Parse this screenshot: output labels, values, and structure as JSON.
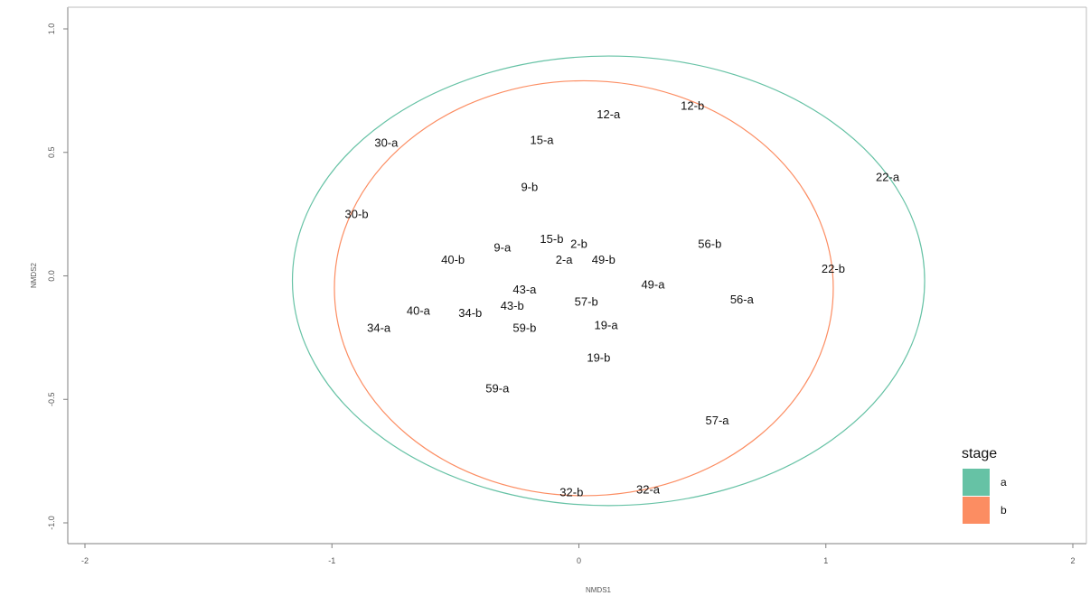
{
  "chart_data": {
    "type": "scatter",
    "title": "",
    "xlabel": "NMDS1",
    "ylabel": "NMDS2",
    "xlim": [
      -2.0,
      2.0
    ],
    "ylim": [
      -1.0,
      1.0
    ],
    "x_ticks": [
      -2,
      -1,
      0,
      1,
      2
    ],
    "y_ticks": [
      -1.0,
      -0.5,
      0.0,
      0.5,
      1.0
    ],
    "x_tick_labels": [
      "-2",
      "-1",
      "0",
      "1",
      "2"
    ],
    "y_tick_labels": [
      "-1.0",
      "-0.5",
      "0.0",
      "0.5",
      "1.0"
    ],
    "grid": false,
    "legend": {
      "title": "stage",
      "position": "bottom-right",
      "entries": [
        {
          "label": "a",
          "color": "#66c2a5"
        },
        {
          "label": "b",
          "color": "#fc8d62"
        }
      ]
    },
    "points": [
      {
        "label": "12-a",
        "x": 0.12,
        "y": 0.655,
        "stage": "a"
      },
      {
        "label": "12-b",
        "x": 0.46,
        "y": 0.69,
        "stage": "b"
      },
      {
        "label": "15-a",
        "x": -0.15,
        "y": 0.55,
        "stage": "a"
      },
      {
        "label": "30-a",
        "x": -0.78,
        "y": 0.54,
        "stage": "a"
      },
      {
        "label": "22-a",
        "x": 1.25,
        "y": 0.4,
        "stage": "a"
      },
      {
        "label": "9-b",
        "x": -0.2,
        "y": 0.36,
        "stage": "b"
      },
      {
        "label": "30-b",
        "x": -0.9,
        "y": 0.25,
        "stage": "b"
      },
      {
        "label": "15-b",
        "x": -0.11,
        "y": 0.15,
        "stage": "b"
      },
      {
        "label": "2-b",
        "x": 0.0,
        "y": 0.13,
        "stage": "b"
      },
      {
        "label": "9-a",
        "x": -0.31,
        "y": 0.115,
        "stage": "a"
      },
      {
        "label": "56-b",
        "x": 0.53,
        "y": 0.13,
        "stage": "b"
      },
      {
        "label": "40-b",
        "x": -0.51,
        "y": 0.065,
        "stage": "b"
      },
      {
        "label": "2-a",
        "x": -0.06,
        "y": 0.065,
        "stage": "a"
      },
      {
        "label": "49-b",
        "x": 0.1,
        "y": 0.065,
        "stage": "b"
      },
      {
        "label": "22-b",
        "x": 1.03,
        "y": 0.03,
        "stage": "b"
      },
      {
        "label": "49-a",
        "x": 0.3,
        "y": -0.035,
        "stage": "a"
      },
      {
        "label": "43-a",
        "x": -0.22,
        "y": -0.055,
        "stage": "a"
      },
      {
        "label": "56-a",
        "x": 0.66,
        "y": -0.095,
        "stage": "a"
      },
      {
        "label": "57-b",
        "x": 0.03,
        "y": -0.105,
        "stage": "b"
      },
      {
        "label": "43-b",
        "x": -0.27,
        "y": -0.12,
        "stage": "b"
      },
      {
        "label": "40-a",
        "x": -0.65,
        "y": -0.14,
        "stage": "a"
      },
      {
        "label": "34-b",
        "x": -0.44,
        "y": -0.15,
        "stage": "b"
      },
      {
        "label": "19-a",
        "x": 0.11,
        "y": -0.2,
        "stage": "a"
      },
      {
        "label": "59-b",
        "x": -0.22,
        "y": -0.21,
        "stage": "b"
      },
      {
        "label": "34-a",
        "x": -0.81,
        "y": -0.21,
        "stage": "a"
      },
      {
        "label": "19-b",
        "x": 0.08,
        "y": -0.33,
        "stage": "b"
      },
      {
        "label": "59-a",
        "x": -0.33,
        "y": -0.455,
        "stage": "a"
      },
      {
        "label": "57-a",
        "x": 0.56,
        "y": -0.585,
        "stage": "a"
      },
      {
        "label": "32-b",
        "x": -0.03,
        "y": -0.875,
        "stage": "b"
      },
      {
        "label": "32-a",
        "x": 0.28,
        "y": -0.865,
        "stage": "a"
      }
    ],
    "ellipses": [
      {
        "stage": "a",
        "color": "#66c2a5",
        "cx": 0.12,
        "cy": -0.02,
        "rx": 1.28,
        "ry": 0.91
      },
      {
        "stage": "b",
        "color": "#fc8d62",
        "cx": 0.02,
        "cy": -0.05,
        "rx": 1.01,
        "ry": 0.84
      }
    ]
  }
}
